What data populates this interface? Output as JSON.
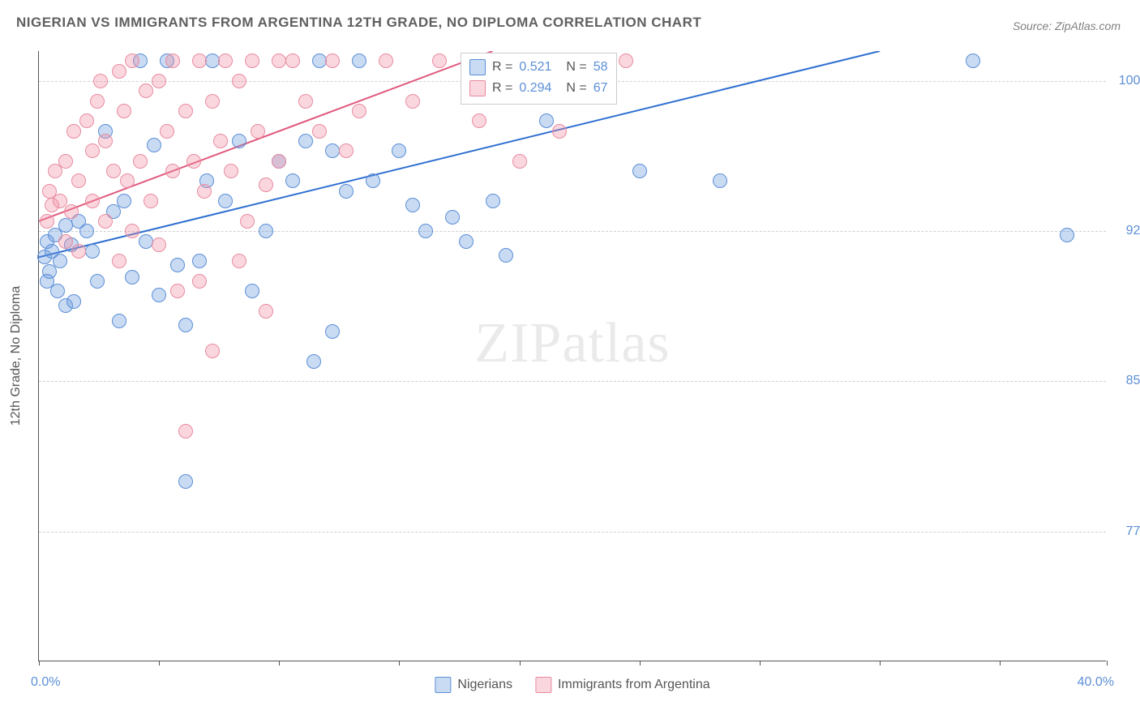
{
  "title": "NIGERIAN VS IMMIGRANTS FROM ARGENTINA 12TH GRADE, NO DIPLOMA CORRELATION CHART",
  "source": "Source: ZipAtlas.com",
  "watermark": {
    "bold": "ZIP",
    "light": "atlas"
  },
  "y_axis_title": "12th Grade, No Diploma",
  "chart": {
    "type": "scatter",
    "background_color": "#ffffff",
    "grid_color": "#d0d0d0",
    "grid_dash": "4 3",
    "axis_color": "#555555",
    "xlim": [
      0,
      40
    ],
    "ylim": [
      71,
      101.5
    ],
    "x_tick_positions": [
      0,
      4.5,
      9,
      13.5,
      18,
      22.5,
      27,
      31.5,
      36,
      40
    ],
    "x_tick_labels": {
      "left": "0.0%",
      "right": "40.0%"
    },
    "y_ticks": [
      {
        "v": 100.0,
        "label": "100.0%"
      },
      {
        "v": 92.5,
        "label": "92.5%"
      },
      {
        "v": 85.0,
        "label": "85.0%"
      },
      {
        "v": 77.5,
        "label": "77.5%"
      }
    ],
    "label_color": "#5b8fd6",
    "label_fontsize": 16,
    "title_color": "#606060",
    "title_fontsize": 17,
    "marker_radius": 9,
    "series": [
      {
        "id": "nigerians",
        "label": "Nigerians",
        "fill": "rgba(100,150,220,0.35)",
        "stroke": "#5b8fd6",
        "R": "0.521",
        "N": "58",
        "trend": {
          "x1": 0,
          "y1": 91.2,
          "x2": 31.5,
          "y2": 101.5,
          "color": "#2e6fd1",
          "width": 2
        },
        "points": [
          [
            0.2,
            91.2
          ],
          [
            0.3,
            92.0
          ],
          [
            0.4,
            90.5
          ],
          [
            0.5,
            91.5
          ],
          [
            0.6,
            92.3
          ],
          [
            0.8,
            91.0
          ],
          [
            1.0,
            92.8
          ],
          [
            0.3,
            90.0
          ],
          [
            0.7,
            89.5
          ],
          [
            1.2,
            91.8
          ],
          [
            1.5,
            93.0
          ],
          [
            1.0,
            88.8
          ],
          [
            1.3,
            89.0
          ],
          [
            1.8,
            92.5
          ],
          [
            2.0,
            91.5
          ],
          [
            2.2,
            90.0
          ],
          [
            2.5,
            97.5
          ],
          [
            2.8,
            93.5
          ],
          [
            3.0,
            88.0
          ],
          [
            3.2,
            94.0
          ],
          [
            3.5,
            90.2
          ],
          [
            3.8,
            101.0
          ],
          [
            4.0,
            92.0
          ],
          [
            4.3,
            96.8
          ],
          [
            4.5,
            89.3
          ],
          [
            4.8,
            101.0
          ],
          [
            5.2,
            90.8
          ],
          [
            5.5,
            87.8
          ],
          [
            5.5,
            80.0
          ],
          [
            6.0,
            91.0
          ],
          [
            6.3,
            95.0
          ],
          [
            6.5,
            101.0
          ],
          [
            7.0,
            94.0
          ],
          [
            7.5,
            97.0
          ],
          [
            8.0,
            89.5
          ],
          [
            8.5,
            92.5
          ],
          [
            9.0,
            96.0
          ],
          [
            9.5,
            95.0
          ],
          [
            10.0,
            97.0
          ],
          [
            10.3,
            86.0
          ],
          [
            10.5,
            101.0
          ],
          [
            11.0,
            96.5
          ],
          [
            11.0,
            87.5
          ],
          [
            11.5,
            94.5
          ],
          [
            12.0,
            101.0
          ],
          [
            12.5,
            95.0
          ],
          [
            13.5,
            96.5
          ],
          [
            14.0,
            93.8
          ],
          [
            14.5,
            92.5
          ],
          [
            15.5,
            93.2
          ],
          [
            16.0,
            92.0
          ],
          [
            17.0,
            94.0
          ],
          [
            17.5,
            91.3
          ],
          [
            19.0,
            98.0
          ],
          [
            22.5,
            95.5
          ],
          [
            25.5,
            95.0
          ],
          [
            35.0,
            101.0
          ],
          [
            38.5,
            92.3
          ]
        ]
      },
      {
        "id": "argentina",
        "label": "Immigrants from Argentina",
        "fill": "rgba(240,140,160,0.35)",
        "stroke": "#e88ba0",
        "R": "0.294",
        "N": "67",
        "trend": {
          "x1": 0,
          "y1": 93.0,
          "x2": 17.0,
          "y2": 101.5,
          "color": "#e05a7d",
          "width": 2
        },
        "points": [
          [
            0.3,
            93.0
          ],
          [
            0.4,
            94.5
          ],
          [
            0.5,
            93.8
          ],
          [
            0.6,
            95.5
          ],
          [
            0.8,
            94.0
          ],
          [
            1.0,
            96.0
          ],
          [
            1.2,
            93.5
          ],
          [
            1.0,
            92.0
          ],
          [
            1.3,
            97.5
          ],
          [
            1.5,
            95.0
          ],
          [
            1.5,
            91.5
          ],
          [
            1.8,
            98.0
          ],
          [
            2.0,
            96.5
          ],
          [
            2.0,
            94.0
          ],
          [
            2.2,
            99.0
          ],
          [
            2.3,
            100.0
          ],
          [
            2.5,
            97.0
          ],
          [
            2.5,
            93.0
          ],
          [
            2.8,
            95.5
          ],
          [
            3.0,
            100.5
          ],
          [
            3.0,
            91.0
          ],
          [
            3.2,
            98.5
          ],
          [
            3.3,
            95.0
          ],
          [
            3.5,
            92.5
          ],
          [
            3.5,
            101.0
          ],
          [
            3.8,
            96.0
          ],
          [
            4.0,
            99.5
          ],
          [
            4.2,
            94.0
          ],
          [
            4.5,
            100.0
          ],
          [
            4.5,
            91.8
          ],
          [
            4.8,
            97.5
          ],
          [
            5.0,
            95.5
          ],
          [
            5.0,
            101.0
          ],
          [
            5.2,
            89.5
          ],
          [
            5.5,
            98.5
          ],
          [
            5.5,
            82.5
          ],
          [
            5.8,
            96.0
          ],
          [
            6.0,
            101.0
          ],
          [
            6.2,
            94.5
          ],
          [
            6.5,
            99.0
          ],
          [
            6.5,
            86.5
          ],
          [
            6.8,
            97.0
          ],
          [
            7.0,
            101.0
          ],
          [
            7.2,
            95.5
          ],
          [
            7.5,
            100.0
          ],
          [
            7.8,
            93.0
          ],
          [
            8.0,
            101.0
          ],
          [
            8.2,
            97.5
          ],
          [
            8.5,
            94.8
          ],
          [
            8.5,
            88.5
          ],
          [
            9.0,
            101.0
          ],
          [
            9.0,
            96.0
          ],
          [
            9.5,
            101.0
          ],
          [
            10.0,
            99.0
          ],
          [
            10.5,
            97.5
          ],
          [
            11.0,
            101.0
          ],
          [
            11.5,
            96.5
          ],
          [
            12.0,
            98.5
          ],
          [
            13.0,
            101.0
          ],
          [
            14.0,
            99.0
          ],
          [
            15.0,
            101.0
          ],
          [
            16.5,
            98.0
          ],
          [
            18.0,
            96.0
          ],
          [
            19.5,
            97.5
          ],
          [
            22.0,
            101.0
          ],
          [
            6.0,
            90.0
          ],
          [
            7.5,
            91.0
          ]
        ]
      }
    ]
  },
  "legend": {
    "r_prefix": "R =",
    "n_prefix": "N ="
  }
}
